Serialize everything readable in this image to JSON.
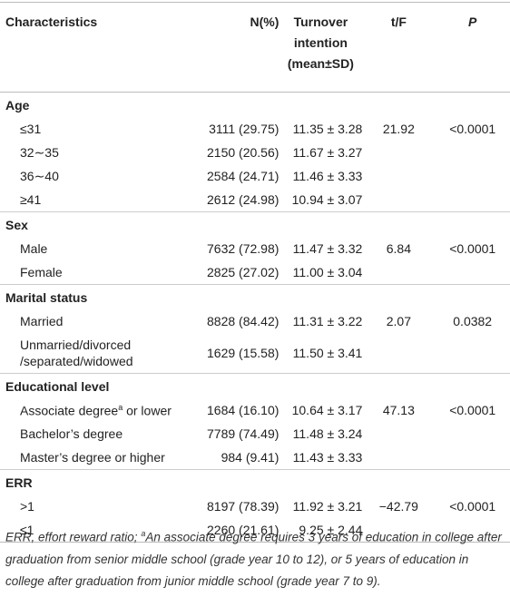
{
  "table": {
    "header": [
      "Characteristics",
      "N(%)",
      [
        "Turnover",
        "intention",
        "(mean±SD)"
      ],
      "t/F",
      "P"
    ],
    "groups": [
      {
        "label": "Age",
        "rows": [
          {
            "label": "≤31",
            "n": "3111 (29.75)",
            "mean": "11.35 ± 3.28",
            "t": "21.92",
            "p": "<0.0001"
          },
          {
            "label": "32∼35",
            "n": "2150 (20.56)",
            "mean": "11.67 ± 3.27"
          },
          {
            "label": "36∼40",
            "n": "2584 (24.71)",
            "mean": "11.46 ± 3.33"
          },
          {
            "label": "≥41",
            "n": "2612 (24.98)",
            "mean": "10.94 ± 3.07"
          }
        ]
      },
      {
        "label": "Sex",
        "rows": [
          {
            "label": "Male",
            "n": "7632 (72.98)",
            "mean": "11.47 ± 3.32",
            "t": "6.84",
            "p": "<0.0001"
          },
          {
            "label": "Female",
            "n": "2825 (27.02)",
            "mean": "11.00 ± 3.04"
          }
        ]
      },
      {
        "label": "Marital status",
        "rows": [
          {
            "label": "Married",
            "n": "8828 (84.42)",
            "mean": "11.31 ± 3.22",
            "t": "2.07",
            "p": "0.0382"
          },
          {
            "label": [
              "Unmarried/divorced",
              "/separated/widowed"
            ],
            "n": "1629 (15.58)",
            "mean": "11.50 ± 3.41"
          }
        ]
      },
      {
        "label": "Educational level",
        "rows": [
          {
            "label": [
              "Associate degree",
              "a",
              " or lower"
            ],
            "n": "1684 (16.10)",
            "mean": "10.64 ± 3.17",
            "t": "47.13",
            "p": "<0.0001"
          },
          {
            "label": "Bachelor’s degree",
            "n": "7789 (74.49)",
            "mean": "11.48 ± 3.24"
          },
          {
            "label": "Master’s degree or higher",
            "n": "984 (9.41)",
            "mean": "11.43 ± 3.33"
          }
        ]
      },
      {
        "label": "ERR",
        "rows": [
          {
            "label": ">1",
            "n": "8197 (78.39)",
            "mean": "11.92 ± 3.21",
            "t": "−42.79",
            "p": "<0.0001"
          },
          {
            "label": "≤1",
            "n": "2260 (21.61)",
            "mean": "9.25 ± 2.44"
          }
        ]
      }
    ]
  },
  "footnote": [
    "ERR, effort reward ratio; ",
    "a",
    "An associate degree requires 3 years of education in college after graduation from senior middle school (grade year 10 to 12), or 5 years of education in college after graduation from junior middle school (grade year 7 to 9)."
  ]
}
